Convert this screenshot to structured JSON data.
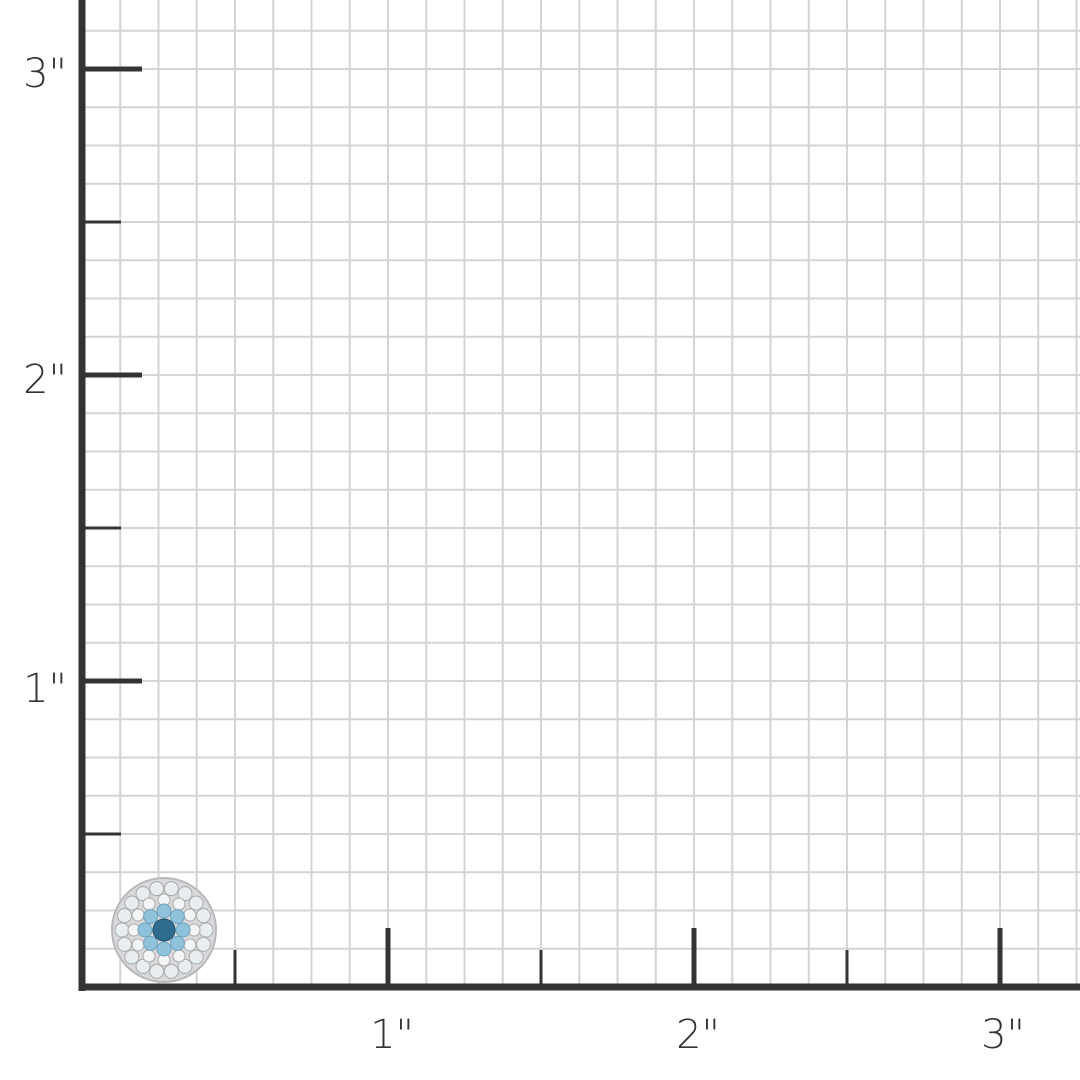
{
  "ruler": {
    "unit_mark": "\"",
    "x_labels": [
      "1\"",
      "2\"",
      "3\""
    ],
    "y_labels": [
      "1\"",
      "2\"",
      "3\""
    ],
    "grid_subdivisions_per_inch": 8,
    "axis_color": "#333333",
    "grid_color": "#d4d4d4"
  },
  "product": {
    "type": "round halo stud earring",
    "metal_color": "#d9d9dc",
    "center_stone_color": "#2f6d8e",
    "inner_stone_color": "#8fc3dc",
    "outer_stone_color": "#e8eef0"
  }
}
